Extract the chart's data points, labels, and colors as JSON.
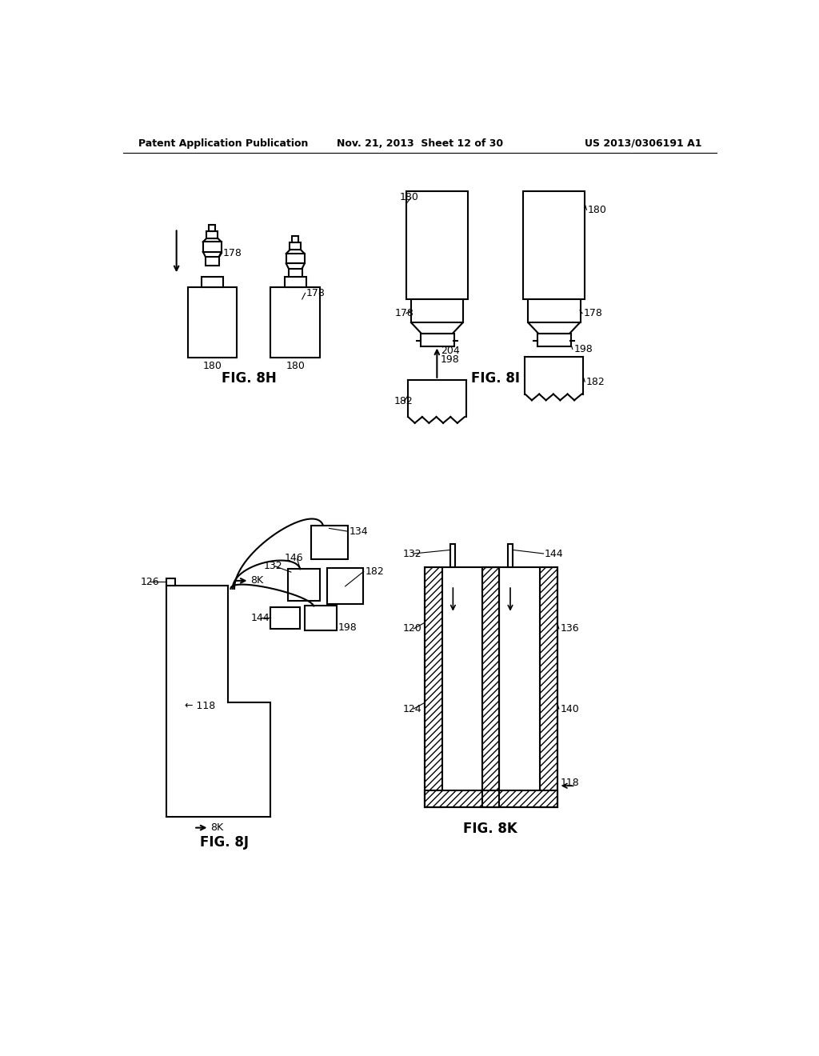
{
  "header_left": "Patent Application Publication",
  "header_mid": "Nov. 21, 2013  Sheet 12 of 30",
  "header_right": "US 2013/0306191 A1",
  "bg_color": "#ffffff",
  "line_color": "#000000"
}
